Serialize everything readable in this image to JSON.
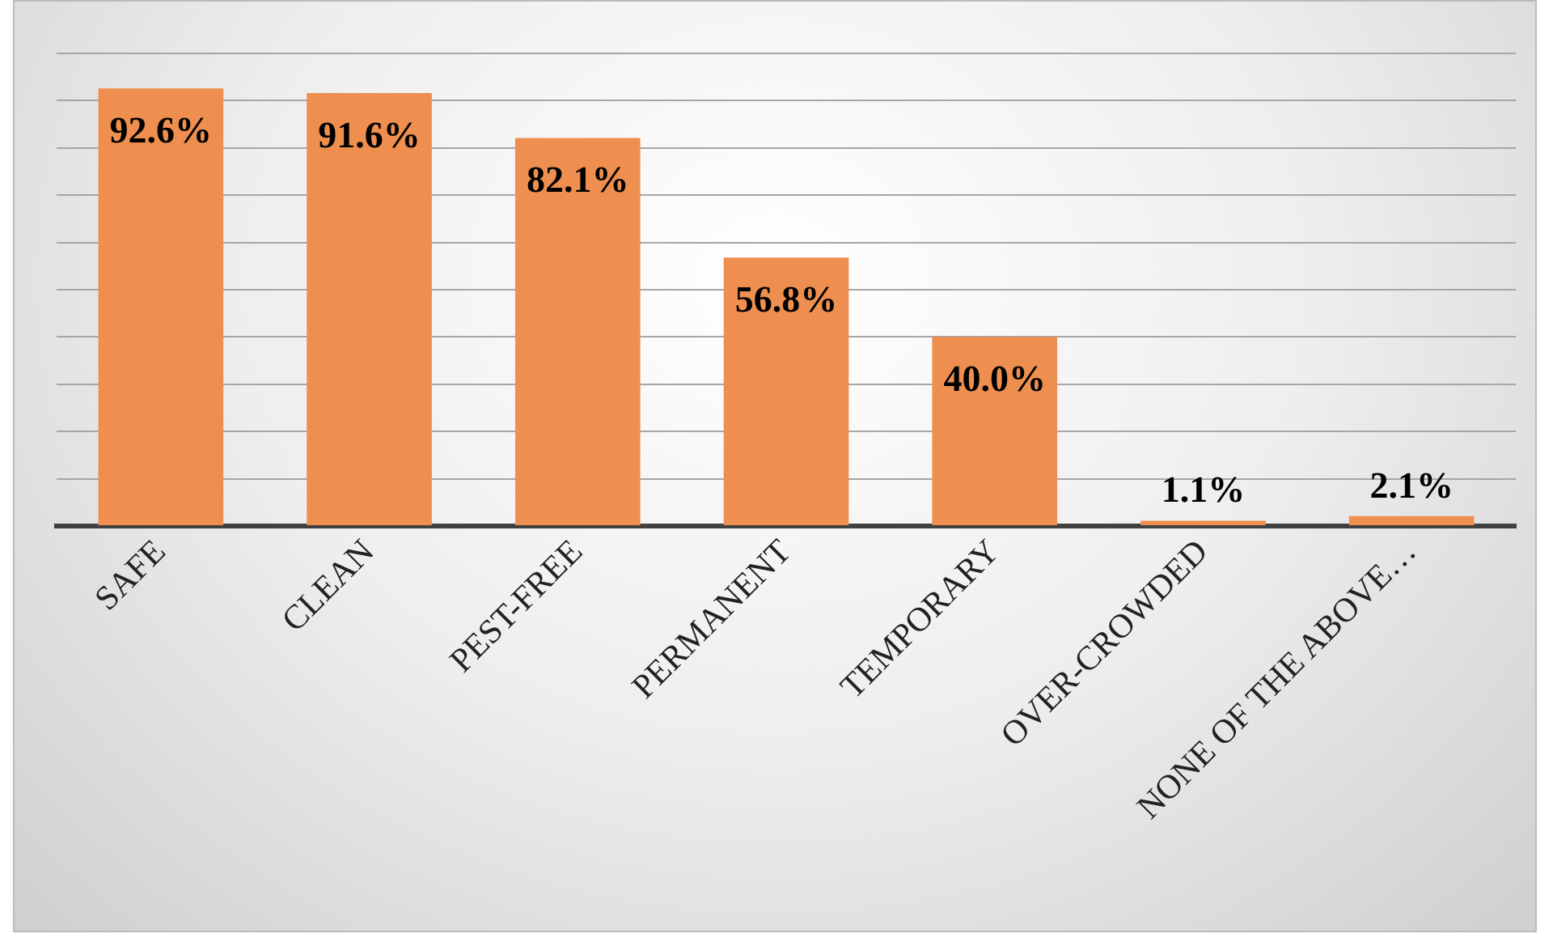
{
  "chart_data": {
    "type": "bar",
    "categories": [
      "SAFE",
      "CLEAN",
      "PEST-FREE",
      "PERMANENT",
      "TEMPORARY",
      "OVER-CROWDED",
      "NONE OF THE ABOVE…"
    ],
    "values": [
      92.6,
      91.6,
      82.1,
      56.8,
      40.0,
      1.1,
      2.1
    ],
    "value_labels": [
      "92.6%",
      "91.6%",
      "82.1%",
      "56.8%",
      "40.0%",
      "1.1%",
      "2.1%"
    ],
    "color": "#ee8f4f",
    "ylim": [
      0,
      100
    ],
    "yticks": [
      {
        "value": 0,
        "label": null
      },
      {
        "value": 10,
        "label": null
      },
      {
        "value": 20,
        "label": null
      },
      {
        "value": 30,
        "label": null
      },
      {
        "value": 40,
        "label": null
      },
      {
        "value": 50,
        "label": null
      },
      {
        "value": 60,
        "label": null
      },
      {
        "value": 70,
        "label": null
      },
      {
        "value": 80,
        "label": null
      },
      {
        "value": 90,
        "label": null
      },
      {
        "value": 100,
        "label": null
      }
    ],
    "grid": "y",
    "tick_labels": "x"
  }
}
